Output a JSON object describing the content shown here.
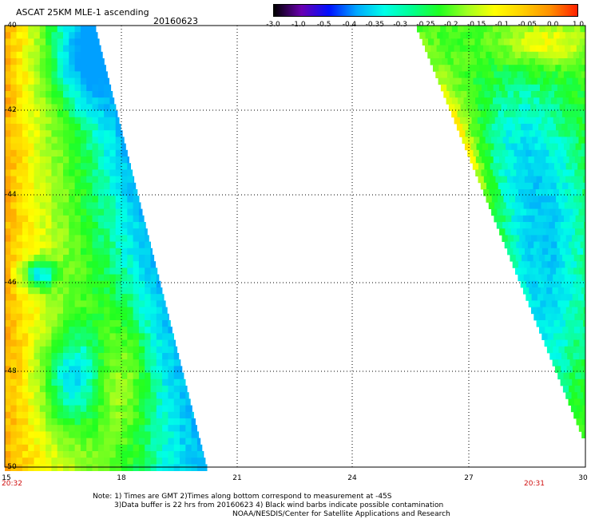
{
  "header": {
    "title": "ASCAT 25KM MLE-1 ascending",
    "date": "20160623"
  },
  "colorbar": {
    "labels": [
      "-3.0",
      "-1.0",
      "-0.5",
      "-0.4",
      "-0.35",
      "-0.3",
      "-0.25",
      "-0.2",
      "-0.15",
      "-0.1",
      "-0.05",
      "0.0",
      "1.0"
    ],
    "colors": [
      "#000000",
      "#6a00b0",
      "#0010ff",
      "#00a8ff",
      "#00ffe8",
      "#00ff90",
      "#20ff20",
      "#a0ff20",
      "#ffff00",
      "#ffd000",
      "#ff9000",
      "#ff2000"
    ]
  },
  "axes": {
    "y_ticks": [
      "-40",
      "-42",
      "-44",
      "-46",
      "-48",
      "-50"
    ],
    "x_ticks": [
      "15",
      "18",
      "21",
      "24",
      "27",
      "30"
    ],
    "lat_range": [
      -50,
      -40
    ],
    "lon_range": [
      15,
      30
    ]
  },
  "times": {
    "left": "20:32",
    "right": "20:31"
  },
  "notes": {
    "line1": "Note: 1) Times are GMT 2)Times along bottom correspond to measurement at -45S",
    "line2": "3)Data buffer is 22 hrs from 20160623 4) Black wind barbs indicate possible contamination",
    "line3": "NOAA/NESDIS/Center for Satellite Applications and Research"
  }
}
